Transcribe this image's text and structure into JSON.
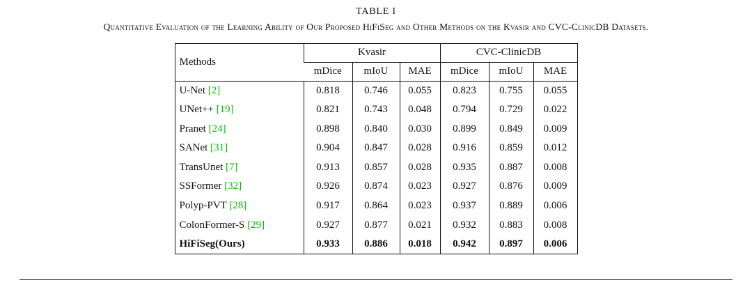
{
  "page": {
    "title": "TABLE I",
    "caption": "Quantitative Evaluation of the Learning Ability of Our Proposed HiFiSeg and Other Methods on the Kvasir and CVC-ClinicDB Datasets."
  },
  "colors": {
    "citation_green": "#00c000"
  },
  "table": {
    "methods_header": "Methods",
    "groups": [
      {
        "label": "Kvasir",
        "subcolumns": [
          "mDice",
          "mIoU",
          "MAE"
        ]
      },
      {
        "label": "CVC-ClinicDB",
        "subcolumns": [
          "mDice",
          "mIoU",
          "MAE"
        ]
      }
    ],
    "rows": [
      {
        "method": "U-Net",
        "citation": "[2]",
        "bold": false,
        "values": [
          "0.818",
          "0.746",
          "0.055",
          "0.823",
          "0.755",
          "0.055"
        ]
      },
      {
        "method": "UNet++",
        "citation": "[19]",
        "bold": false,
        "values": [
          "0.821",
          "0.743",
          "0.048",
          "0.794",
          "0.729",
          "0.022"
        ]
      },
      {
        "method": "Pranet",
        "citation": "[24]",
        "bold": false,
        "values": [
          "0.898",
          "0.840",
          "0.030",
          "0.899",
          "0.849",
          "0.009"
        ]
      },
      {
        "method": "SANet",
        "citation": "[31]",
        "bold": false,
        "values": [
          "0.904",
          "0.847",
          "0.028",
          "0.916",
          "0.859",
          "0.012"
        ]
      },
      {
        "method": "TransUnet",
        "citation": "[7]",
        "bold": false,
        "values": [
          "0.913",
          "0.857",
          "0.028",
          "0.935",
          "0.887",
          "0.008"
        ]
      },
      {
        "method": "SSFormer",
        "citation": "[32]",
        "bold": false,
        "values": [
          "0.926",
          "0.874",
          "0.023",
          "0.927",
          "0.876",
          "0.009"
        ]
      },
      {
        "method": "Polyp-PVT",
        "citation": "[28]",
        "bold": false,
        "values": [
          "0.917",
          "0.864",
          "0.023",
          "0.937",
          "0.889",
          "0.006"
        ]
      },
      {
        "method": "ColonFormer-S",
        "citation": "[29]",
        "bold": false,
        "values": [
          "0.927",
          "0.877",
          "0.021",
          "0.932",
          "0.883",
          "0.008"
        ]
      },
      {
        "method": "HiFiSeg(Ours)",
        "citation": "",
        "bold": true,
        "values": [
          "0.933",
          "0.886",
          "0.018",
          "0.942",
          "0.897",
          "0.006"
        ]
      }
    ]
  }
}
